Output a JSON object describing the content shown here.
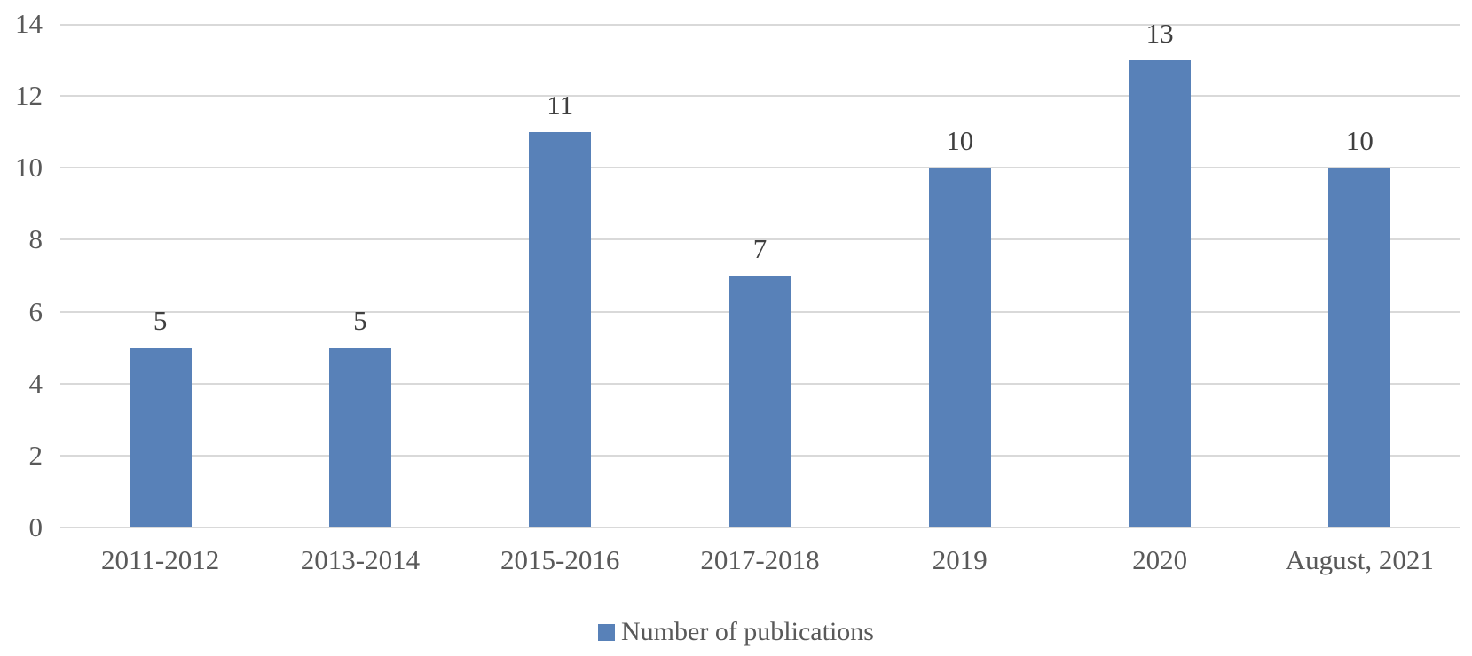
{
  "chart_data": {
    "type": "bar",
    "title": "",
    "xlabel": "",
    "ylabel": "",
    "categories": [
      "2011-2012",
      "2013-2014",
      "2015-2016",
      "2017-2018",
      "2019",
      "2020",
      "August, 2021"
    ],
    "series": [
      {
        "name": "Number of publications",
        "values": [
          5,
          5,
          11,
          7,
          10,
          13,
          10
        ]
      }
    ],
    "value_labels": [
      "5",
      "5",
      "11",
      "7",
      "10",
      "13",
      "10"
    ],
    "ylim": [
      0,
      14
    ],
    "yticks": [
      0,
      2,
      4,
      6,
      8,
      10,
      12,
      14
    ],
    "grid": true,
    "legend_position": "bottom"
  },
  "legend": {
    "marker": "square-icon",
    "label": "Number of publications"
  },
  "colors": {
    "bar": "#5881B8",
    "gridline": "#D9D9D9",
    "axis_text": "#595959",
    "value_text": "#3F3F3F",
    "background": "#FFFFFF"
  }
}
